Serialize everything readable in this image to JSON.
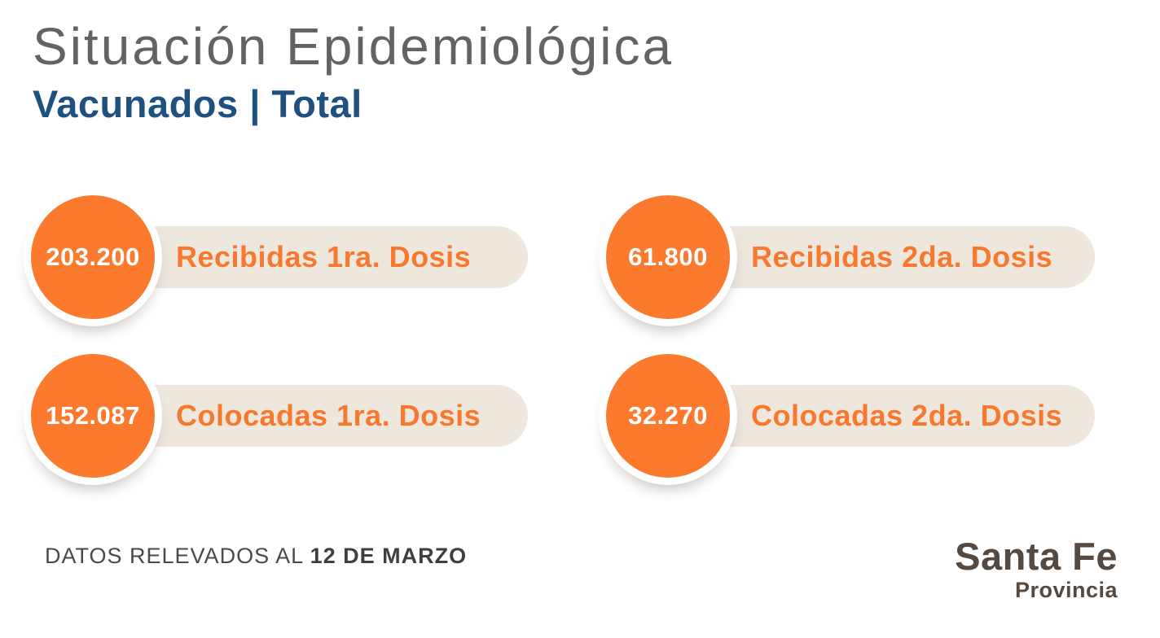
{
  "page": {
    "title": "Situación Epidemiológica",
    "subtitle": "Vacunados | Total"
  },
  "stats": [
    {
      "value": "203.200",
      "label": "Recibidas 1ra. Dosis"
    },
    {
      "value": "61.800",
      "label": "Recibidas 2da. Dosis"
    },
    {
      "value": "152.087",
      "label": "Colocadas 1ra. Dosis"
    },
    {
      "value": "32.270",
      "label": "Colocadas 2da. Dosis"
    }
  ],
  "footer": {
    "note_prefix": "DATOS RELEVADOS AL ",
    "note_date": "12 DE MARZO"
  },
  "logo": {
    "name": "Santa Fe",
    "subname": "Provincia"
  },
  "colors": {
    "accent_orange": "#FB7A2E",
    "pill_beige": "#EEE7DD",
    "title_gray": "#636366",
    "subtitle_blue": "#1E5180",
    "footer_gray": "#4A4A4A",
    "logo_brown": "#564940"
  }
}
